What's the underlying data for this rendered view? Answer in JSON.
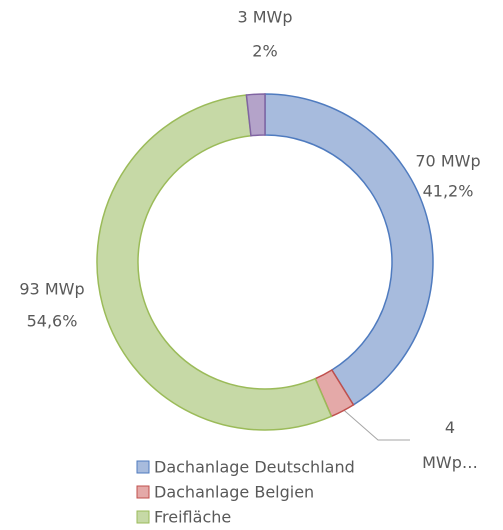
{
  "chart_data": {
    "type": "donut",
    "categories": [
      "Dachanlage Deutschland",
      "Dachanlage Belgien",
      "Freifläche",
      null
    ],
    "values": [
      70,
      4,
      93,
      3
    ],
    "value_labels": [
      "70 MWp",
      "4 MWp…",
      "93 MWp",
      "3 MWp"
    ],
    "percent_labels": [
      "41,2%",
      null,
      "54,6%",
      "2%"
    ],
    "colors": [
      "#a7bbdd",
      "#e4a9a8",
      "#c6d9a6",
      "#b4a3c9"
    ],
    "stroke_colors": [
      "#4f7bbf",
      "#c0504d",
      "#9bbb59",
      "#8064a2"
    ],
    "legend": "bottom"
  }
}
